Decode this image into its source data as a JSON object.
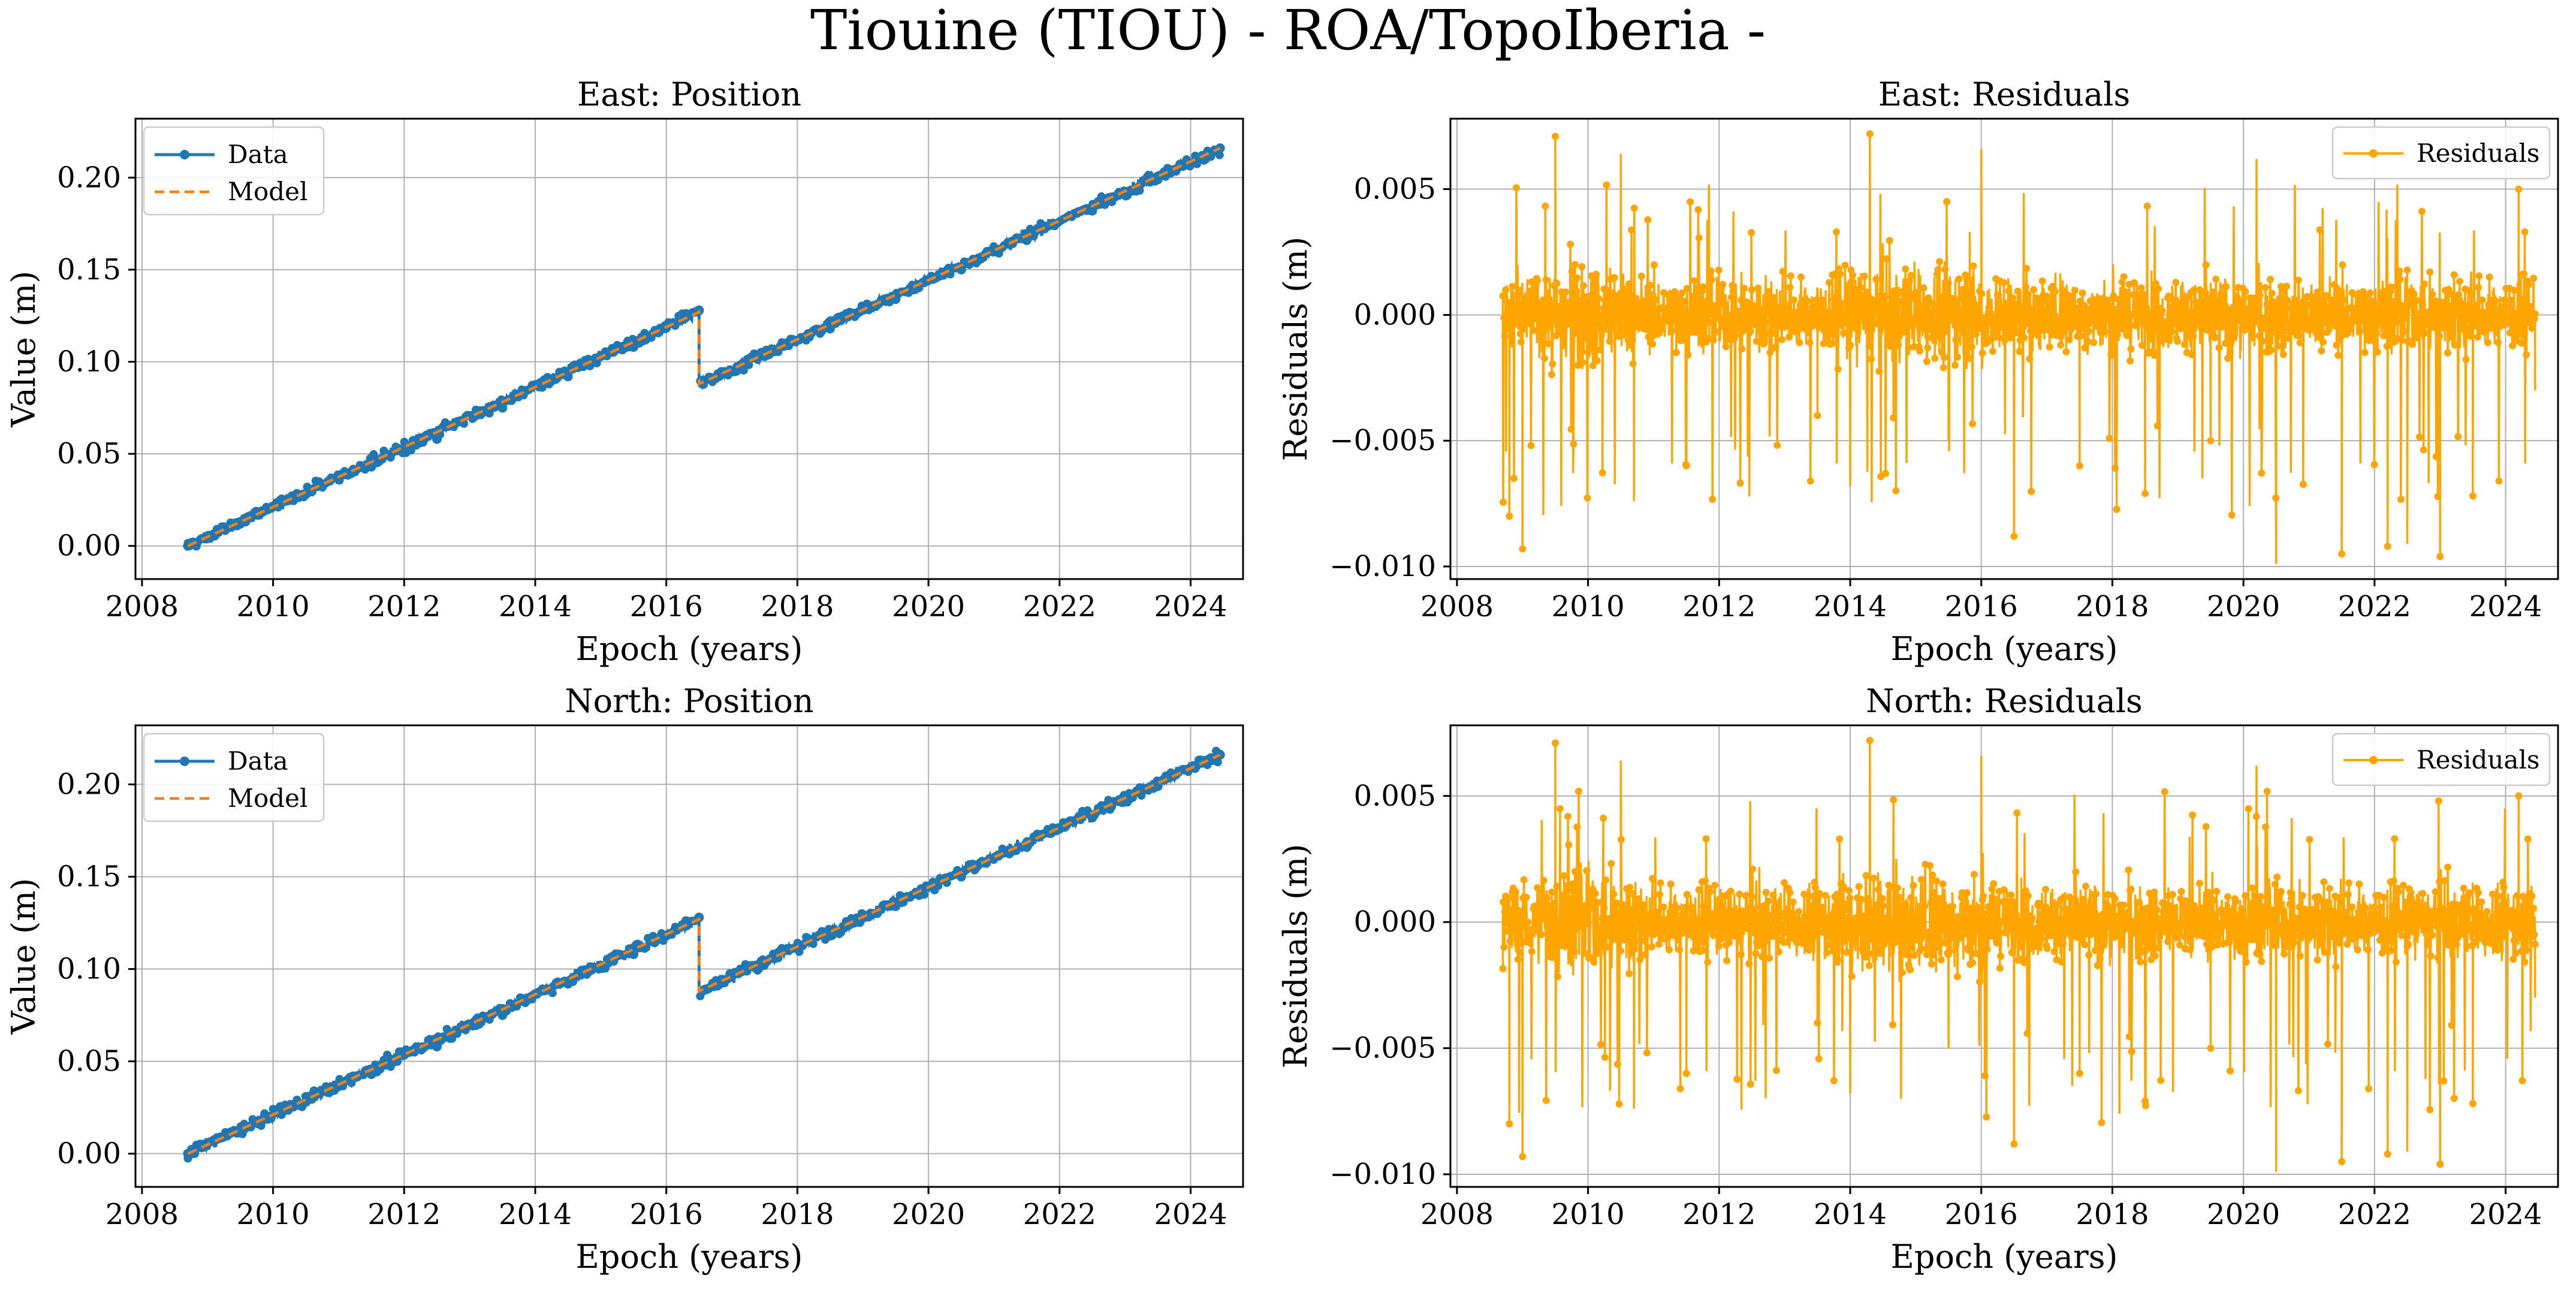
{
  "figure_title": "Tiouine (TIOU) - ROA/TopoIberia -",
  "colors": {
    "data": "#1f77b4",
    "model": "#ff7f0e",
    "residuals": "#ffa500"
  },
  "chart_data": [
    {
      "type": "line",
      "title": "East: Position",
      "xlabel": "Epoch (years)",
      "ylabel": "Value (m)",
      "xlim": [
        2007.9,
        2024.8
      ],
      "ylim": [
        -0.018,
        0.232
      ],
      "xticks": [
        2008,
        2010,
        2012,
        2014,
        2016,
        2018,
        2020,
        2022,
        2024
      ],
      "xtick_labels": [
        "2008",
        "2010",
        "2012",
        "2014",
        "2016",
        "2018",
        "2020",
        "2022",
        "2024"
      ],
      "yticks": [
        0.0,
        0.05,
        0.1,
        0.15,
        0.2
      ],
      "ytick_labels": [
        "0.00",
        "0.05",
        "0.10",
        "0.15",
        "0.20"
      ],
      "legend_position": "top-left",
      "legend": [
        "Data",
        "Model"
      ],
      "series": [
        {
          "name": "Data",
          "style": "line-with-markers",
          "x": [
            2008.7,
            2009.5,
            2010.5,
            2011.5,
            2012.5,
            2013.5,
            2014.5,
            2015.5,
            2016.3,
            2016.5,
            2016.55,
            2017.5,
            2018.5,
            2019.5,
            2020.5,
            2021.5,
            2022.5,
            2023.5,
            2024.45
          ],
          "y": [
            0.0,
            0.012,
            0.028,
            0.043,
            0.058,
            0.075,
            0.092,
            0.108,
            0.126,
            0.128,
            0.088,
            0.103,
            0.118,
            0.134,
            0.15,
            0.166,
            0.182,
            0.199,
            0.216
          ]
        },
        {
          "name": "Model",
          "style": "dashed",
          "x": [
            2008.7,
            2016.5,
            2016.5,
            2024.45
          ],
          "y": [
            0.0,
            0.127,
            0.088,
            0.216
          ]
        }
      ]
    },
    {
      "type": "line",
      "title": "East: Residuals",
      "xlabel": "Epoch (years)",
      "ylabel": "Residuals (m)",
      "xlim": [
        2007.9,
        2024.8
      ],
      "ylim": [
        -0.0105,
        0.0078
      ],
      "xticks": [
        2008,
        2010,
        2012,
        2014,
        2016,
        2018,
        2020,
        2022,
        2024
      ],
      "xtick_labels": [
        "2008",
        "2010",
        "2012",
        "2014",
        "2016",
        "2018",
        "2020",
        "2022",
        "2024"
      ],
      "yticks": [
        -0.01,
        -0.005,
        0.0,
        0.005
      ],
      "ytick_labels": [
        "−0.010",
        "−0.005",
        "0.000",
        "0.005"
      ],
      "legend_position": "top-right",
      "legend": [
        "Residuals"
      ],
      "series": [
        {
          "name": "Residuals",
          "style": "line-with-markers",
          "x": [
            2008.7,
            2008.8,
            2009.0,
            2009.5,
            2009.8,
            2010.5,
            2010.7,
            2011.5,
            2012.5,
            2013.5,
            2014.0,
            2014.3,
            2015.5,
            2016.0,
            2016.5,
            2017.5,
            2018.5,
            2019.5,
            2020.2,
            2020.5,
            2021.5,
            2022.2,
            2022.5,
            2023.0,
            2023.5,
            2024.2,
            2024.45
          ],
          "y": [
            0.0,
            -0.008,
            -0.0093,
            0.0071,
            0.002,
            0.0064,
            -0.0074,
            -0.006,
            0.001,
            -0.004,
            -0.0068,
            0.0072,
            -0.005,
            0.0066,
            -0.0088,
            -0.006,
            -0.0071,
            -0.005,
            0.0062,
            -0.0099,
            -0.0095,
            -0.0092,
            -0.0091,
            -0.0096,
            -0.0072,
            0.005,
            -0.003
          ]
        }
      ]
    },
    {
      "type": "line",
      "title": "North: Position",
      "xlabel": "Epoch (years)",
      "ylabel": "Value (m)",
      "xlim": [
        2007.9,
        2024.8
      ],
      "ylim": [
        -0.018,
        0.232
      ],
      "xticks": [
        2008,
        2010,
        2012,
        2014,
        2016,
        2018,
        2020,
        2022,
        2024
      ],
      "xtick_labels": [
        "2008",
        "2010",
        "2012",
        "2014",
        "2016",
        "2018",
        "2020",
        "2022",
        "2024"
      ],
      "yticks": [
        0.0,
        0.05,
        0.1,
        0.15,
        0.2
      ],
      "ytick_labels": [
        "0.00",
        "0.05",
        "0.10",
        "0.15",
        "0.20"
      ],
      "legend_position": "top-left",
      "legend": [
        "Data",
        "Model"
      ],
      "series": [
        {
          "name": "Data",
          "style": "line-with-markers",
          "x": [
            2008.7,
            2009.5,
            2010.5,
            2011.5,
            2012.5,
            2013.5,
            2014.5,
            2015.5,
            2016.3,
            2016.5,
            2016.55,
            2017.5,
            2018.5,
            2019.5,
            2020.5,
            2021.5,
            2022.5,
            2023.5,
            2024.45
          ],
          "y": [
            0.0,
            0.012,
            0.028,
            0.043,
            0.058,
            0.075,
            0.092,
            0.108,
            0.126,
            0.128,
            0.088,
            0.103,
            0.118,
            0.134,
            0.15,
            0.166,
            0.182,
            0.199,
            0.216
          ]
        },
        {
          "name": "Model",
          "style": "dashed",
          "x": [
            2008.7,
            2016.5,
            2016.5,
            2024.45
          ],
          "y": [
            0.0,
            0.127,
            0.088,
            0.216
          ]
        }
      ]
    },
    {
      "type": "line",
      "title": "North: Residuals",
      "xlabel": "Epoch (years)",
      "ylabel": "Residuals (m)",
      "xlim": [
        2007.9,
        2024.8
      ],
      "ylim": [
        -0.0105,
        0.0078
      ],
      "xticks": [
        2008,
        2010,
        2012,
        2014,
        2016,
        2018,
        2020,
        2022,
        2024
      ],
      "xtick_labels": [
        "2008",
        "2010",
        "2012",
        "2014",
        "2016",
        "2018",
        "2020",
        "2022",
        "2024"
      ],
      "yticks": [
        -0.01,
        -0.005,
        0.0,
        0.005
      ],
      "ytick_labels": [
        "−0.010",
        "−0.005",
        "0.000",
        "0.005"
      ],
      "legend_position": "top-right",
      "legend": [
        "Residuals"
      ],
      "series": [
        {
          "name": "Residuals",
          "style": "line-with-markers",
          "x": [
            2008.7,
            2008.8,
            2009.0,
            2009.5,
            2009.8,
            2010.5,
            2010.7,
            2011.5,
            2012.5,
            2013.5,
            2014.0,
            2014.3,
            2015.5,
            2016.0,
            2016.5,
            2017.5,
            2018.5,
            2019.5,
            2020.2,
            2020.5,
            2021.5,
            2022.2,
            2022.5,
            2023.0,
            2023.5,
            2024.2,
            2024.45
          ],
          "y": [
            0.0,
            -0.008,
            -0.0093,
            0.0071,
            0.002,
            0.0064,
            -0.0074,
            -0.006,
            0.001,
            -0.004,
            -0.0068,
            0.0072,
            -0.005,
            0.0066,
            -0.0088,
            -0.006,
            -0.0071,
            -0.005,
            0.0062,
            -0.0099,
            -0.0095,
            -0.0092,
            -0.0091,
            -0.0096,
            -0.0072,
            0.005,
            -0.003
          ]
        }
      ]
    }
  ]
}
